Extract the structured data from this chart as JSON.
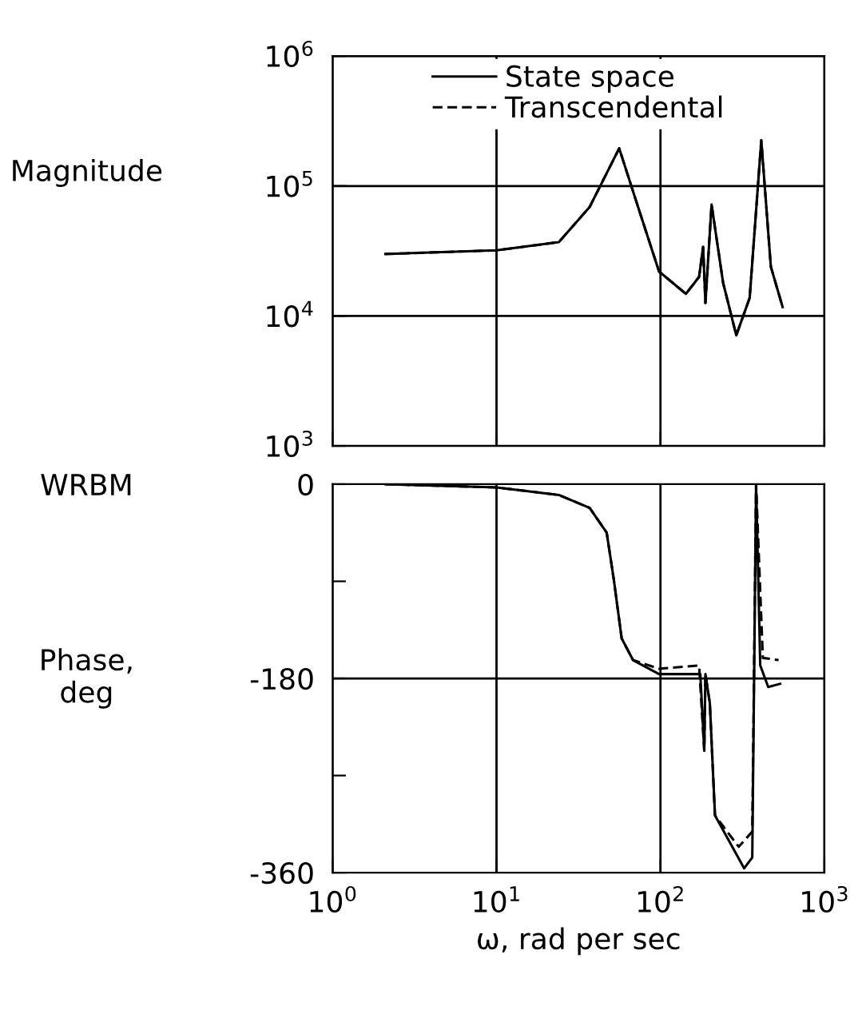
{
  "chart_data": [
    {
      "type": "line",
      "ylabel": "Magnitude",
      "annotations": [
        "WRBM"
      ],
      "log": "xy",
      "xlim": [
        1,
        1000
      ],
      "ylim": [
        1000,
        1000000
      ],
      "xticks": [
        {
          "value": 1,
          "label": null
        },
        {
          "value": 10,
          "label": null
        },
        {
          "value": 100,
          "label": null
        },
        {
          "value": 1000,
          "label": null
        }
      ],
      "yticks": [
        {
          "value": 1000,
          "label": "10$^{3}$"
        },
        {
          "value": 10000,
          "label": "10$^{4}$"
        },
        {
          "value": 100000,
          "label": "10$^{5}$"
        },
        {
          "value": 1000000,
          "label": "10$^{6}$"
        }
      ],
      "tick_labels": "y",
      "grid": true,
      "legend": "top",
      "marker": "none",
      "series": [
        {
          "name": "State space",
          "color": "#000000",
          "line_style": "solid",
          "x": [
            2.1,
            10,
            24,
            37,
            56,
            73,
            98,
            143,
            172,
            182,
            188,
            205,
            241,
            290,
            350,
            412,
            471,
            556
          ],
          "values": [
            30000,
            32000,
            37000,
            69000,
            195000,
            69000,
            22000,
            14800,
            20000,
            34000,
            12600,
            72000,
            18000,
            7100,
            13800,
            225000,
            24000,
            11700
          ]
        },
        {
          "name": "Transcendental",
          "color": "#000000",
          "line_style": "dashed",
          "x": [
            2.1,
            10,
            24,
            37,
            56,
            73,
            98,
            143,
            172,
            182,
            188,
            205,
            241,
            290,
            350,
            412,
            471,
            556
          ],
          "values": [
            30000,
            32000,
            37000,
            69000,
            195000,
            69000,
            22000,
            14800,
            20000,
            34000,
            12600,
            72000,
            18000,
            7100,
            13800,
            225000,
            24000,
            11700
          ]
        }
      ]
    },
    {
      "type": "line",
      "xlabel": "ω, rad per sec",
      "ylabel": "Phase,\ndeg",
      "log": "x",
      "xlim": [
        1,
        1000
      ],
      "ylim": [
        -360,
        0
      ],
      "xticks": [
        {
          "value": 1,
          "label": "10$^{0}$"
        },
        {
          "value": 10,
          "label": "10$^{1}$"
        },
        {
          "value": 100,
          "label": "10$^{2}$"
        },
        {
          "value": 1000,
          "label": "10$^{3}$"
        }
      ],
      "yticks": [
        0,
        {
          "value": -90,
          "label": null
        },
        -180,
        {
          "value": -270,
          "label": null
        },
        -360
      ],
      "grid": "x",
      "ref_lines": [
        {
          "axis": "y",
          "value": -180,
          "color": "#000000"
        }
      ],
      "marker": "none",
      "series": [
        {
          "color": "#000000",
          "line_style": "solid",
          "x": [
            2.1,
            10,
            24,
            37,
            47,
            52,
            58,
            68,
            98,
            154,
            175,
            185,
            188,
            200,
            215,
            324,
            363,
            383,
            406,
            454,
            537
          ],
          "values": [
            0,
            -3,
            -10,
            -22,
            -45,
            -89,
            -143,
            -163,
            -176,
            -176,
            -176,
            -247,
            -176,
            -203,
            -307,
            -356,
            -346,
            0,
            -168,
            -188,
            -185
          ]
        },
        {
          "color": "#000000",
          "line_style": "dashed",
          "x": [
            2.1,
            10,
            24,
            37,
            47,
            52,
            58,
            68,
            98,
            172,
            185,
            188,
            200,
            215,
            300,
            363,
            383,
            421,
            525
          ],
          "values": [
            0,
            -3,
            -10,
            -22,
            -45,
            -89,
            -143,
            -163,
            -171,
            -168,
            -247,
            -176,
            -203,
            -307,
            -336,
            -322,
            0,
            -161,
            -163
          ]
        }
      ]
    }
  ]
}
